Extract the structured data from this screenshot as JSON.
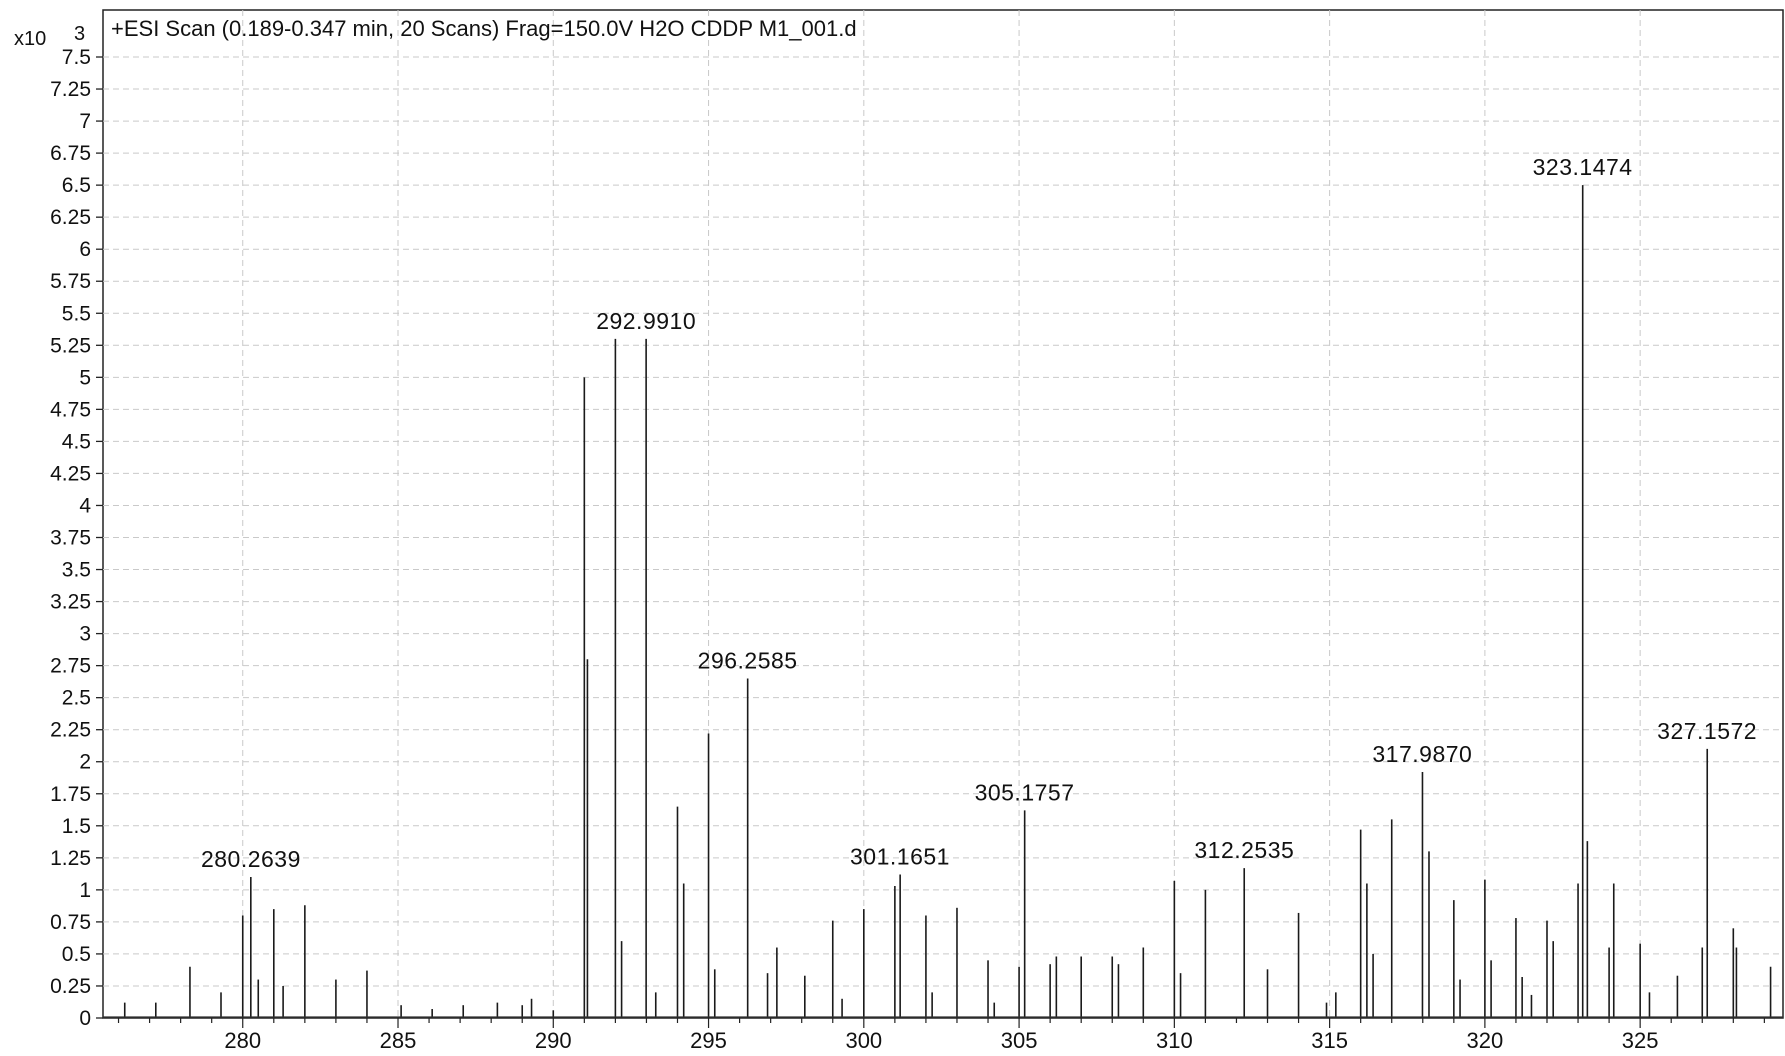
{
  "chart_data": {
    "type": "line",
    "plot_style": "mass-spectrum-sticks",
    "title": "+ESI Scan (0.189-0.347 min, 20 Scans) Frag=150.0V H2O CDDP M1_001.d",
    "y_unit_label": "x10",
    "y_unit_exponent": "3",
    "xlabel": "",
    "ylabel": "",
    "xlim": [
      275.5,
      329.6
    ],
    "ylim": [
      0,
      7.5
    ],
    "grid": true,
    "legend": "none",
    "x_ticks": [
      280,
      285,
      290,
      295,
      300,
      305,
      310,
      315,
      320,
      325
    ],
    "x_tick_labels": [
      "280",
      "285",
      "290",
      "295",
      "300",
      "305",
      "310",
      "315",
      "320",
      "325"
    ],
    "y_ticks": [
      0,
      0.25,
      0.5,
      0.75,
      1,
      1.25,
      1.5,
      1.75,
      2,
      2.25,
      2.5,
      2.75,
      3,
      3.25,
      3.5,
      3.75,
      4,
      4.25,
      4.5,
      4.75,
      5,
      5.25,
      5.5,
      5.75,
      6,
      6.25,
      6.5,
      6.75,
      7,
      7.25,
      7.5
    ],
    "y_tick_labels": [
      "0",
      "0.25",
      "0.5",
      "0.75",
      "1",
      "1.25",
      "1.5",
      "1.75",
      "2",
      "2.25",
      "2.5",
      "2.75",
      "3",
      "3.25",
      "3.5",
      "3.75",
      "4",
      "4.25",
      "4.5",
      "4.75",
      "5",
      "5.25",
      "5.5",
      "5.75",
      "6",
      "6.25",
      "6.5",
      "6.75",
      "7",
      "7.25",
      "7.5"
    ],
    "series": [
      {
        "color": "#1a1a1a",
        "x": [
          276.2,
          277.2,
          278.3,
          279.3,
          280.0,
          280.26,
          280.5,
          281.0,
          281.3,
          282.0,
          283.0,
          284.0,
          285.1,
          286.1,
          287.1,
          288.2,
          289.0,
          289.3,
          290.0,
          291.0,
          291.1,
          292.0,
          292.2,
          292.99,
          293.3,
          294.0,
          294.2,
          295.0,
          295.2,
          296.26,
          296.9,
          297.2,
          298.1,
          299.0,
          299.3,
          300.0,
          301.0,
          301.17,
          302.0,
          302.2,
          303.0,
          304.0,
          304.2,
          305.0,
          305.18,
          306.0,
          306.2,
          307.0,
          308.0,
          308.2,
          309.0,
          310.0,
          310.2,
          311.0,
          312.25,
          313.0,
          314.0,
          314.9,
          315.2,
          316.0,
          316.2,
          316.4,
          317.0,
          317.99,
          318.2,
          319.0,
          319.2,
          320.0,
          320.2,
          321.0,
          321.2,
          321.5,
          322.0,
          322.2,
          323.0,
          323.15,
          323.3,
          324.0,
          324.15,
          325.0,
          325.3,
          326.2,
          327.0,
          327.16,
          328.0,
          328.1,
          329.2
        ],
        "y": [
          0.12,
          0.12,
          0.4,
          0.2,
          0.8,
          1.1,
          0.3,
          0.85,
          0.25,
          0.88,
          0.3,
          0.37,
          0.1,
          0.07,
          0.1,
          0.12,
          0.1,
          0.15,
          0.06,
          5.0,
          2.8,
          5.3,
          0.6,
          5.3,
          0.2,
          1.65,
          1.05,
          2.22,
          0.38,
          2.65,
          0.35,
          0.55,
          0.33,
          0.76,
          0.15,
          0.85,
          1.03,
          1.12,
          0.8,
          0.2,
          0.86,
          0.45,
          0.12,
          0.4,
          1.62,
          0.42,
          0.48,
          0.48,
          0.48,
          0.42,
          0.55,
          1.07,
          0.35,
          1.0,
          1.17,
          0.38,
          0.82,
          0.12,
          0.2,
          1.47,
          1.05,
          0.5,
          1.55,
          1.92,
          1.3,
          0.92,
          0.3,
          1.08,
          0.45,
          0.78,
          0.32,
          0.18,
          0.76,
          0.6,
          1.05,
          6.5,
          1.38,
          0.55,
          1.05,
          0.58,
          0.2,
          0.33,
          0.55,
          2.1,
          0.7,
          0.55,
          0.4
        ]
      }
    ],
    "annotations": [
      {
        "x": 280.2639,
        "y": 1.1,
        "text": "280.2639"
      },
      {
        "x": 292.991,
        "y": 5.3,
        "text": "292.9910"
      },
      {
        "x": 296.2585,
        "y": 2.65,
        "text": "296.2585"
      },
      {
        "x": 301.1651,
        "y": 1.12,
        "text": "301.1651"
      },
      {
        "x": 305.1757,
        "y": 1.62,
        "text": "305.1757"
      },
      {
        "x": 312.2535,
        "y": 1.17,
        "text": "312.2535"
      },
      {
        "x": 317.987,
        "y": 1.92,
        "text": "317.9870"
      },
      {
        "x": 323.1474,
        "y": 6.5,
        "text": "323.1474"
      },
      {
        "x": 327.1572,
        "y": 2.1,
        "text": "327.1572"
      }
    ]
  }
}
